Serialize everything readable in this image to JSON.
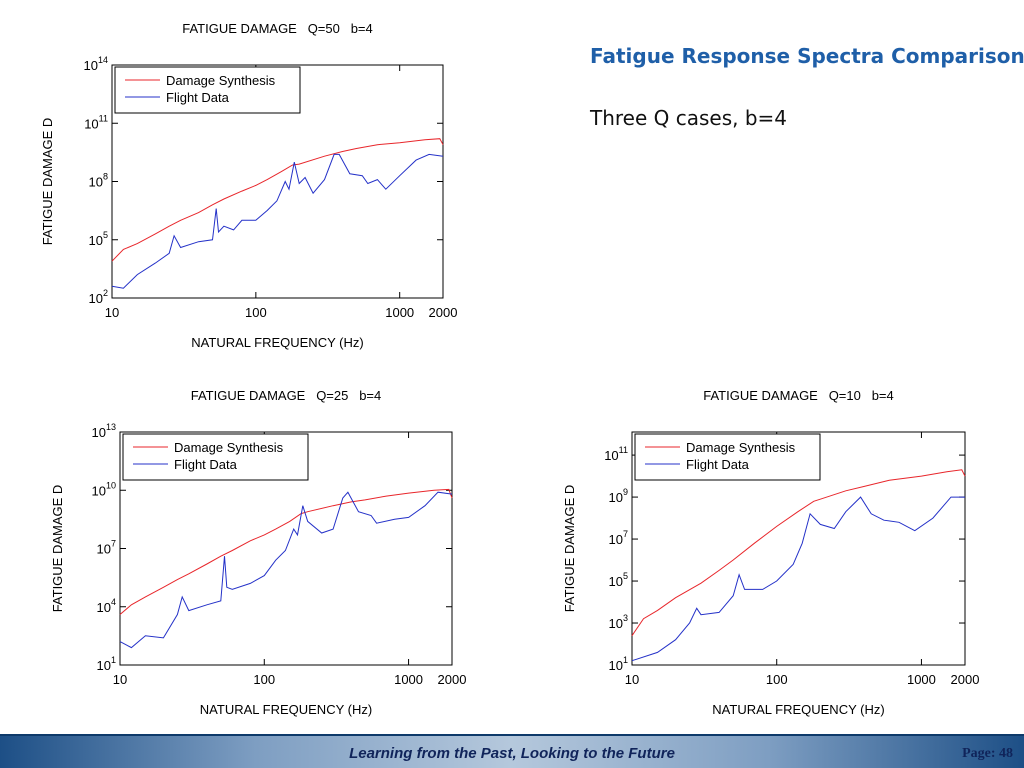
{
  "slide": {
    "title": "Fatigue Response Spectra Comparison",
    "subtitle": "Three Q cases, b=4",
    "footer": "Learning from the Past, Looking to the Future",
    "page": "Page: 48"
  },
  "chart_data": [
    {
      "type": "line",
      "title": "FATIGUE DAMAGE   Q=50   b=4",
      "x_label": "NATURAL FREQUENCY (Hz)",
      "y_label": "FATIGUE DAMAGE D",
      "xscale": "log",
      "yscale": "log",
      "legend": "upper left",
      "xlim": [
        10,
        2000
      ],
      "xticks": [
        10,
        100,
        1000,
        2000
      ],
      "ylim": [
        100.0,
        100000000000000.0
      ],
      "yticks": [
        {
          "value": 100.0,
          "label": "10^2"
        },
        {
          "value": 100000.0,
          "label": "10^5"
        },
        {
          "value": 100000000.0,
          "label": "10^8"
        },
        {
          "value": 100000000000.0,
          "label": "10^11"
        },
        {
          "value": 100000000000000.0,
          "label": "10^14"
        }
      ],
      "series": [
        {
          "name": "Damage Synthesis",
          "color": "#e8262b",
          "x": [
            10,
            12,
            15,
            20,
            25,
            30,
            40,
            50,
            60,
            80,
            100,
            120,
            150,
            180,
            200,
            300,
            400,
            500,
            700,
            1000,
            1500,
            1900,
            2000
          ],
          "values": [
            7900.0,
            32000.0,
            63000.0,
            200000.0,
            500000.0,
            1000000.0,
            2500000.0,
            6300000.0,
            12600000.0,
            32000000.0,
            63000000.0,
            126000000.0,
            320000000.0,
            710000000.0,
            790000000.0,
            2000000000.0,
            3500000000.0,
            5000000000.0,
            7900000000.0,
            10000000000.0,
            14000000000.0,
            16000000000.0,
            7900000000.0
          ]
        },
        {
          "name": "Flight Data",
          "color": "#2431c8",
          "x": [
            10,
            12,
            15,
            20,
            25,
            27,
            30,
            40,
            50,
            53,
            55,
            60,
            70,
            80,
            100,
            120,
            140,
            160,
            170,
            185,
            200,
            220,
            250,
            300,
            350,
            380,
            450,
            550,
            600,
            700,
            800,
            1000,
            1300,
            1600,
            2000
          ],
          "values": [
            400.0,
            320.0,
            1600.0,
            6300.0,
            20000.0,
            160000.0,
            40000.0,
            79000.0,
            100000.0,
            4000000.0,
            250000.0,
            500000.0,
            320000.0,
            1000000.0,
            1000000.0,
            3200000.0,
            10000000.0,
            100000000.0,
            40000000.0,
            1000000000.0,
            79000000.0,
            160000000.0,
            25000000.0,
            126000000.0,
            2500000000.0,
            2500000000.0,
            250000000.0,
            200000000.0,
            79000000.0,
            126000000.0,
            40000000.0,
            200000000.0,
            1260000000.0,
            2500000000.0,
            2000000000.0
          ]
        }
      ]
    },
    {
      "type": "line",
      "title": "FATIGUE DAMAGE   Q=25   b=4",
      "x_label": "NATURAL FREQUENCY (Hz)",
      "y_label": "FATIGUE DAMAGE D",
      "xscale": "log",
      "yscale": "log",
      "legend": "upper left",
      "xlim": [
        10,
        2000
      ],
      "xticks": [
        10,
        100,
        1000,
        2000
      ],
      "ylim": [
        10.0,
        10000000000000.0
      ],
      "yticks": [
        {
          "value": 10.0,
          "label": "10^1"
        },
        {
          "value": 10000.0,
          "label": "10^4"
        },
        {
          "value": 10000000.0,
          "label": "10^7"
        },
        {
          "value": 10000000000.0,
          "label": "10^10"
        },
        {
          "value": 10000000000000.0,
          "label": "10^13"
        }
      ],
      "series": [
        {
          "name": "Damage Synthesis",
          "color": "#e8262b",
          "x": [
            10,
            12,
            15,
            20,
            25,
            30,
            40,
            50,
            60,
            80,
            100,
            120,
            150,
            180,
            200,
            300,
            400,
            500,
            700,
            1000,
            1500,
            1900,
            2000
          ],
          "values": [
            4000.0,
            12600.0,
            32000.0,
            100000.0,
            250000.0,
            500000.0,
            1600000.0,
            4000000.0,
            7900000.0,
            25000000.0,
            50000000.0,
            100000000.0,
            250000000.0,
            630000000.0,
            790000000.0,
            1600000000.0,
            2500000000.0,
            3200000000.0,
            5000000000.0,
            7100000000.0,
            10000000000.0,
            11000000000.0,
            4000000000.0
          ]
        },
        {
          "name": "Flight Data",
          "color": "#2431c8",
          "x": [
            10,
            12,
            15,
            20,
            25,
            27,
            30,
            40,
            50,
            53,
            55,
            60,
            80,
            100,
            120,
            140,
            160,
            170,
            185,
            200,
            250,
            300,
            350,
            380,
            450,
            550,
            600,
            800,
            1000,
            1300,
            1600,
            2000
          ],
          "values": [
            160.0,
            79.0,
            320.0,
            250.0,
            4000.0,
            32000.0,
            6300.0,
            12600.0,
            20000.0,
            4000000.0,
            100000.0,
            79000.0,
            160000.0,
            400000.0,
            2500000.0,
            7900000.0,
            100000000.0,
            50000000.0,
            1600000000.0,
            250000000.0,
            63000000.0,
            100000000.0,
            4000000000.0,
            7900000000.0,
            790000000.0,
            500000000.0,
            200000000.0,
            320000000.0,
            400000000.0,
            1600000000.0,
            7900000000.0,
            6300000000.0
          ]
        }
      ]
    },
    {
      "type": "line",
      "title": "FATIGUE DAMAGE   Q=10   b=4",
      "x_label": "NATURAL FREQUENCY (Hz)",
      "y_label": "FATIGUE DAMAGE D",
      "xscale": "log",
      "yscale": "log",
      "legend": "upper left",
      "xlim": [
        10,
        2000
      ],
      "xticks": [
        10,
        100,
        1000,
        2000
      ],
      "ylim": [
        10.0,
        1260000000000.0
      ],
      "yticks": [
        {
          "value": 10.0,
          "label": "10^1"
        },
        {
          "value": 1000.0,
          "label": "10^3"
        },
        {
          "value": 100000.0,
          "label": "10^5"
        },
        {
          "value": 10000000.0,
          "label": "10^7"
        },
        {
          "value": 1000000000.0,
          "label": "10^9"
        },
        {
          "value": 100000000000.0,
          "label": "10^11"
        }
      ],
      "series": [
        {
          "name": "Damage Synthesis",
          "color": "#e8262b",
          "x": [
            10,
            12,
            15,
            20,
            30,
            40,
            50,
            70,
            100,
            140,
            180,
            200,
            300,
            400,
            600,
            1000,
            1500,
            1900,
            2000
          ],
          "values": [
            250.0,
            1600.0,
            4000.0,
            16000.0,
            79000.0,
            320000.0,
            1000000.0,
            6300000.0,
            40000000.0,
            200000000.0,
            630000000.0,
            790000000.0,
            2000000000.0,
            3200000000.0,
            6300000000.0,
            10000000000.0,
            16000000000.0,
            20000000000.0,
            10000000000.0
          ]
        },
        {
          "name": "Flight Data",
          "color": "#2431c8",
          "x": [
            10,
            15,
            20,
            25,
            28,
            30,
            40,
            50,
            55,
            60,
            80,
            100,
            130,
            150,
            170,
            200,
            250,
            300,
            380,
            450,
            550,
            700,
            900,
            1200,
            1600,
            2000
          ],
          "values": [
            16.0,
            40.0,
            160.0,
            1000.0,
            5000.0,
            2500.0,
            3200.0,
            20000.0,
            200000.0,
            40000.0,
            40000.0,
            100000.0,
            630000.0,
            6300000.0,
            160000000.0,
            50000000.0,
            32000000.0,
            200000000.0,
            1000000000.0,
            160000000.0,
            79000000.0,
            63000000.0,
            25000000.0,
            100000000.0,
            1000000000.0,
            1000000000.0
          ]
        }
      ]
    }
  ]
}
